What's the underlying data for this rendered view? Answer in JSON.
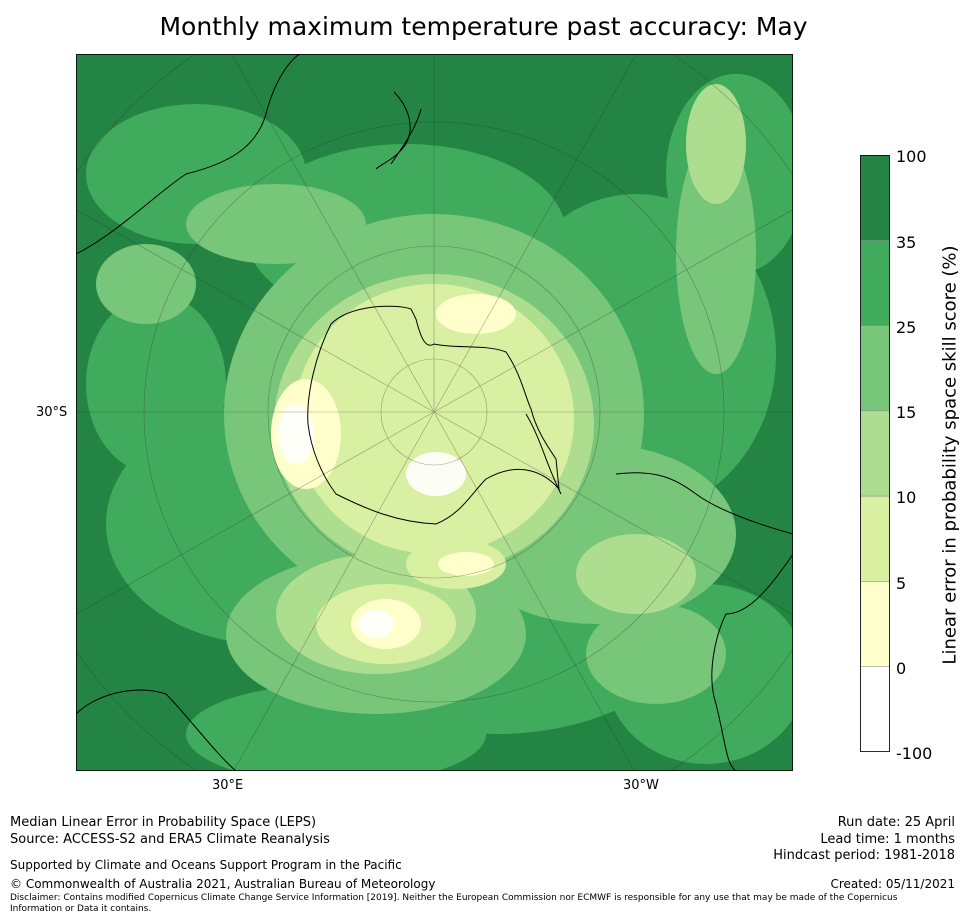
{
  "title": "Monthly maximum temperature past accuracy: May",
  "map": {
    "projection": "south-polar-stereographic",
    "lat_label": "30°S",
    "lon_labels": [
      "30°E",
      "30°W"
    ],
    "features": [
      "Antarctica",
      "Australia",
      "New Zealand",
      "South America",
      "Africa"
    ]
  },
  "colorbar": {
    "label": "Linear error in probability space skill score (%)",
    "ticks": [
      "100",
      "35",
      "25",
      "15",
      "10",
      "5",
      "0",
      "-100"
    ],
    "bins": [
      {
        "from": -100,
        "to": 0,
        "color": "#ffffff"
      },
      {
        "from": 0,
        "to": 5,
        "color": "#ffffcc"
      },
      {
        "from": 5,
        "to": 10,
        "color": "#d9f0a3"
      },
      {
        "from": 10,
        "to": 15,
        "color": "#addd8e"
      },
      {
        "from": 15,
        "to": 25,
        "color": "#78c679"
      },
      {
        "from": 25,
        "to": 35,
        "color": "#41ab5d"
      },
      {
        "from": 35,
        "to": 100,
        "color": "#238443"
      }
    ]
  },
  "footer": {
    "line1": "Median Linear Error in Probability Space (LEPS)",
    "line2": "Source: ACCESS-S2 and ERA5 Climate Reanalysis",
    "support": "Supported by Climate and Oceans Support Program in the Pacific",
    "copyright": "© Commonwealth of Australia 2021, Australian Bureau of Meteorology",
    "disclaimer1": "Disclaimer: Contains modified Copernicus Climate Change Service Information [2019]. Neither the European Commission nor ECMWF is responsible for any use that may be made of the Copernicus",
    "disclaimer2": "Information or Data it contains.",
    "run_date": "Run date: 25 April",
    "lead_time": "Lead time: 1 months",
    "hindcast": "Hindcast period: 1981-2018",
    "created": "Created: 05/11/2021"
  }
}
